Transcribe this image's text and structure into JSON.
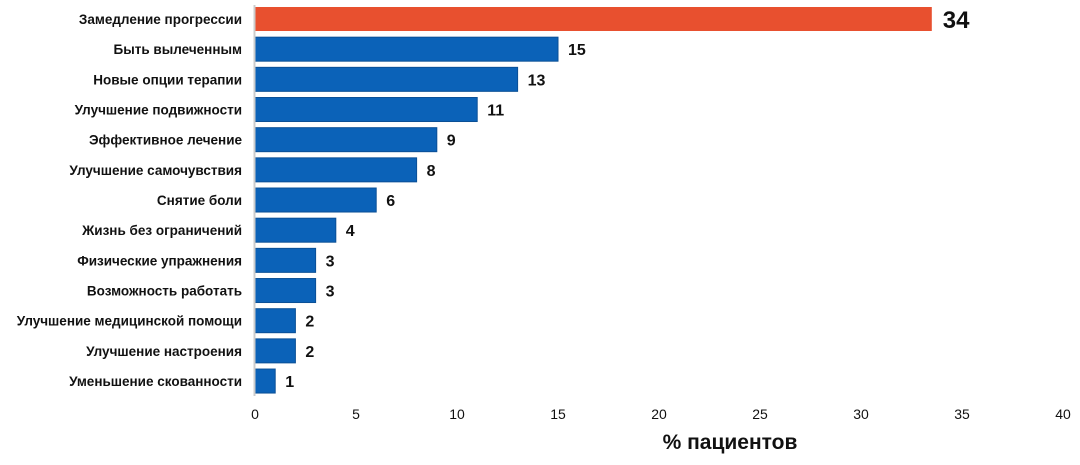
{
  "chart_data": {
    "type": "bar",
    "orientation": "horizontal",
    "categories": [
      "Замедление прогрессии",
      "Быть вылеченным",
      "Новые опции терапии",
      "Улучшение подвижности",
      "Эффективное лечение",
      "Улучшение самочувствия",
      "Снятие боли",
      "Жизнь без ограничений",
      "Физические упражнения",
      "Возможность работать",
      "Улучшение медицинской помощи",
      "Улучшение настроения",
      "Уменьшение скованности"
    ],
    "values": [
      34,
      15,
      13,
      11,
      9,
      8,
      6,
      4,
      3,
      3,
      2,
      2,
      1
    ],
    "highlight_index": 0,
    "colors": {
      "highlight": "#e8502f",
      "bar": "#0b62b8",
      "bar_border": "#0a4f96",
      "axis": "#cccccc"
    },
    "xlabel": "% пациентов",
    "ylabel": "",
    "xlim": [
      0,
      40
    ],
    "xticks": [
      0,
      5,
      10,
      15,
      20,
      25,
      30,
      35,
      40
    ],
    "grid": false,
    "legend": "none"
  }
}
